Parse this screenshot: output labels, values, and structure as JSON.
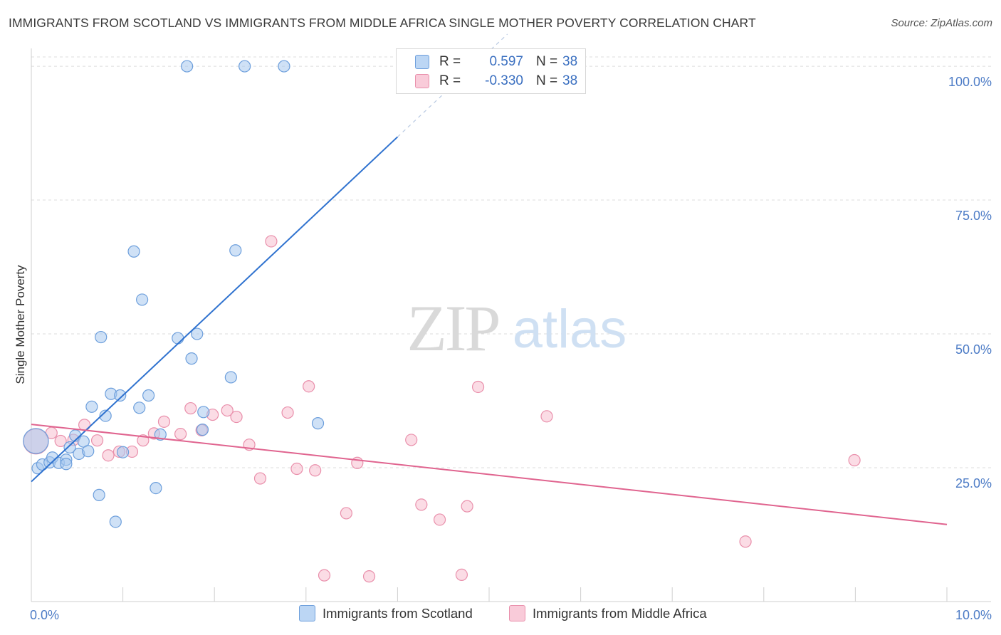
{
  "title": "IMMIGRANTS FROM SCOTLAND VS IMMIGRANTS FROM MIDDLE AFRICA SINGLE MOTHER POVERTY CORRELATION CHART",
  "source": "Source: ZipAtlas.com",
  "watermark": {
    "zip": "ZIP",
    "atlas": "atlas"
  },
  "legend": {
    "rows": [
      {
        "r_label": "R =",
        "r_value": "0.597",
        "n_label": "N =",
        "n_value": "38"
      },
      {
        "r_label": "R =",
        "r_value": "-0.330",
        "n_label": "N =",
        "n_value": "38"
      }
    ]
  },
  "colors": {
    "scotland_fill": "#a8c8ef",
    "scotland_stroke": "#6d9fdc",
    "scotland_line": "#2f72cf",
    "africa_fill": "#f7bfd0",
    "africa_stroke": "#e98fab",
    "africa_line": "#e0648f",
    "tick_label": "#4d7cc6",
    "grid": "#dcdcdc"
  },
  "chart_data": {
    "type": "scatter",
    "title": "IMMIGRANTS FROM SCOTLAND VS IMMIGRANTS FROM MIDDLE AFRICA SINGLE MOTHER POVERTY CORRELATION CHART",
    "xlabel": "",
    "ylabel": "Single Mother Poverty",
    "xlim": [
      0,
      10
    ],
    "ylim": [
      0,
      104
    ],
    "x_tick_labels": [
      {
        "value": 0,
        "label": "0.0%"
      },
      {
        "value": 10,
        "label": "10.0%"
      }
    ],
    "x_minor_ticks": [
      0,
      1,
      2,
      3,
      4,
      5,
      6,
      7,
      8,
      9,
      10
    ],
    "y_ticks": [
      {
        "value": 25,
        "label": "25.0%"
      },
      {
        "value": 50,
        "label": "50.0%"
      },
      {
        "value": 75,
        "label": "75.0%"
      },
      {
        "value": 100,
        "label": "100.0%"
      }
    ],
    "series": [
      {
        "name": "Immigrants from Scotland",
        "r": 0.597,
        "n": 38,
        "trend": {
          "x0": 0,
          "y0": 22.4,
          "x1": 4.0,
          "y1": 86.8,
          "dash_to_x": 5.2,
          "dash_to_y": 106.0
        },
        "points": [
          [
            0.05,
            30.0,
            2.2
          ],
          [
            0.07,
            24.9,
            1
          ],
          [
            0.12,
            25.6,
            1
          ],
          [
            0.2,
            26.0,
            1
          ],
          [
            0.23,
            26.9,
            1
          ],
          [
            0.3,
            25.9,
            1
          ],
          [
            0.38,
            26.5,
            1
          ],
          [
            0.38,
            25.7,
            1
          ],
          [
            0.42,
            28.8,
            1
          ],
          [
            0.48,
            31.0,
            1
          ],
          [
            0.52,
            27.6,
            1
          ],
          [
            0.57,
            29.9,
            1
          ],
          [
            0.62,
            28.1,
            1
          ],
          [
            0.66,
            36.4,
            1
          ],
          [
            0.74,
            19.9,
            1
          ],
          [
            0.76,
            49.4,
            1
          ],
          [
            0.81,
            34.7,
            1
          ],
          [
            0.87,
            38.8,
            1
          ],
          [
            0.92,
            14.9,
            1
          ],
          [
            0.97,
            38.5,
            1
          ],
          [
            1.0,
            27.9,
            1
          ],
          [
            1.12,
            65.4,
            1
          ],
          [
            1.18,
            36.2,
            1
          ],
          [
            1.21,
            56.4,
            1
          ],
          [
            1.28,
            38.5,
            1
          ],
          [
            1.36,
            21.2,
            1
          ],
          [
            1.41,
            31.2,
            1
          ],
          [
            1.6,
            49.2,
            1
          ],
          [
            1.7,
            100.0,
            1
          ],
          [
            1.75,
            45.4,
            1
          ],
          [
            1.81,
            50.0,
            1
          ],
          [
            1.87,
            32.1,
            1
          ],
          [
            1.88,
            35.4,
            1
          ],
          [
            2.18,
            41.9,
            1
          ],
          [
            2.23,
            65.6,
            1
          ],
          [
            2.33,
            100.0,
            1
          ],
          [
            2.76,
            100.0,
            1
          ],
          [
            3.13,
            33.3,
            1
          ]
        ]
      },
      {
        "name": "Immigrants from Middle Africa",
        "r": -0.33,
        "n": 38,
        "trend": {
          "x0": 0,
          "y0": 33.1,
          "x1": 10,
          "y1": 14.4
        },
        "points": [
          [
            0.05,
            29.9,
            2.2
          ],
          [
            0.22,
            31.5,
            1
          ],
          [
            0.32,
            30.0,
            1
          ],
          [
            0.46,
            30.2,
            1
          ],
          [
            0.58,
            33.0,
            1
          ],
          [
            0.72,
            30.1,
            1
          ],
          [
            0.84,
            27.3,
            1
          ],
          [
            0.96,
            28.0,
            1
          ],
          [
            1.1,
            28.0,
            1
          ],
          [
            1.22,
            30.1,
            1
          ],
          [
            1.34,
            31.4,
            1
          ],
          [
            1.45,
            33.6,
            1
          ],
          [
            1.63,
            31.3,
            1
          ],
          [
            1.74,
            36.1,
            1
          ],
          [
            1.86,
            32.0,
            1
          ],
          [
            1.98,
            34.9,
            1
          ],
          [
            2.14,
            35.7,
            1
          ],
          [
            2.24,
            34.5,
            1
          ],
          [
            2.38,
            29.3,
            1
          ],
          [
            2.5,
            23.0,
            1
          ],
          [
            2.62,
            67.3,
            1
          ],
          [
            2.8,
            35.3,
            1
          ],
          [
            2.9,
            24.8,
            1
          ],
          [
            3.03,
            40.2,
            1
          ],
          [
            3.1,
            24.5,
            1
          ],
          [
            3.2,
            4.9,
            1
          ],
          [
            3.44,
            16.5,
            1
          ],
          [
            3.56,
            25.9,
            1
          ],
          [
            3.69,
            4.7,
            1
          ],
          [
            4.15,
            30.2,
            1
          ],
          [
            4.26,
            18.1,
            1
          ],
          [
            4.46,
            15.3,
            1
          ],
          [
            4.7,
            5.0,
            1
          ],
          [
            4.76,
            17.8,
            1
          ],
          [
            4.88,
            40.1,
            1
          ],
          [
            5.63,
            34.6,
            1
          ],
          [
            7.8,
            11.2,
            1
          ],
          [
            8.99,
            26.4,
            1
          ]
        ]
      }
    ],
    "legend": [
      "Immigrants from Scotland",
      "Immigrants from Middle Africa"
    ]
  }
}
